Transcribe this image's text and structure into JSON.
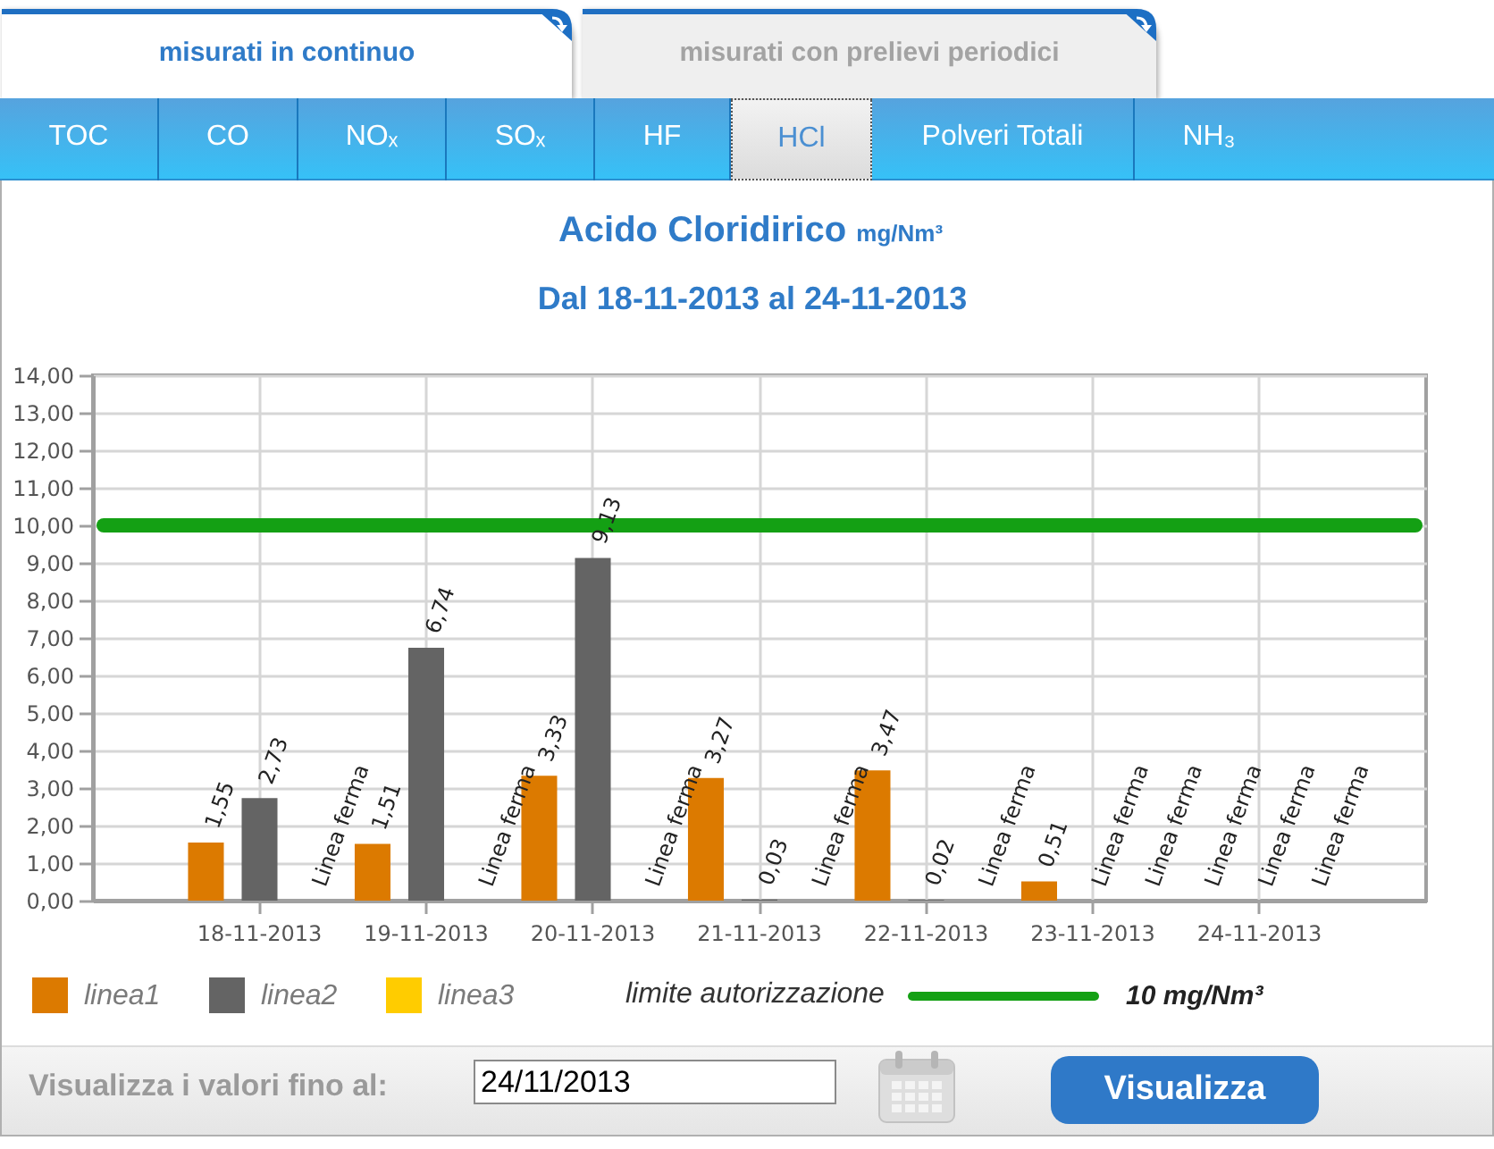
{
  "chart_data": {
    "type": "bar",
    "title": "Acido Cloridirico mg/Nm³",
    "subtitle": "Dal 18-11-2013 al 24-11-2013",
    "categories": [
      "18-11-2013",
      "19-11-2013",
      "20-11-2013",
      "21-11-2013",
      "22-11-2013",
      "23-11-2013",
      "24-11-2013"
    ],
    "series": [
      {
        "name": "linea1",
        "color": "#dc7a00",
        "values": [
          1.55,
          1.51,
          3.33,
          3.27,
          3.47,
          0.51,
          null
        ],
        "value_labels": [
          "1,55",
          "1,51",
          "3,33",
          "3,27",
          "3,47",
          "0,51",
          "Linea ferma"
        ]
      },
      {
        "name": "linea2",
        "color": "#646464",
        "values": [
          2.73,
          6.74,
          9.13,
          0.03,
          0.02,
          null,
          null
        ],
        "value_labels": [
          "2,73",
          "6,74",
          "9,13",
          "0,03",
          "0,02",
          "Linea ferma",
          "Linea ferma"
        ]
      },
      {
        "name": "linea3",
        "color": "#ffcc00",
        "values": [
          null,
          null,
          null,
          null,
          null,
          null,
          null
        ],
        "value_labels": [
          "Linea ferma",
          "Linea ferma",
          "Linea ferma",
          "Linea ferma",
          "Linea ferma",
          "Linea ferma",
          "Linea ferma"
        ]
      }
    ],
    "ylim": [
      0,
      14
    ],
    "yticks": [
      {
        "value": 0,
        "label": "0,00"
      },
      {
        "value": 1,
        "label": "1,00"
      },
      {
        "value": 2,
        "label": "2,00"
      },
      {
        "value": 3,
        "label": "3,00"
      },
      {
        "value": 4,
        "label": "4,00"
      },
      {
        "value": 5,
        "label": "5,00"
      },
      {
        "value": 6,
        "label": "6,00"
      },
      {
        "value": 7,
        "label": "7,00"
      },
      {
        "value": 8,
        "label": "8,00"
      },
      {
        "value": 9,
        "label": "9,00"
      },
      {
        "value": 10,
        "label": "10,00"
      },
      {
        "value": 11,
        "label": "11,00"
      },
      {
        "value": 12,
        "label": "12,00"
      },
      {
        "value": 13,
        "label": "13,00"
      },
      {
        "value": 14,
        "label": "14,00"
      }
    ],
    "grid": true,
    "legend": "bottom left",
    "ref_lines": [
      {
        "axis": "y",
        "value": 10,
        "color": "#14a014"
      }
    ],
    "annotations": [
      "limite autorizzazione",
      "10 mg/Nm³",
      "misurati in continuo",
      "misurati con prelievi periodici",
      "TOC",
      "CO",
      "NOₓ",
      "SOₓ",
      "HF",
      "HCl",
      "Polveri Totali",
      "NH₃",
      "Visualizza i valori fino al:",
      "24/11/2013",
      "Visualizza"
    ]
  }
}
